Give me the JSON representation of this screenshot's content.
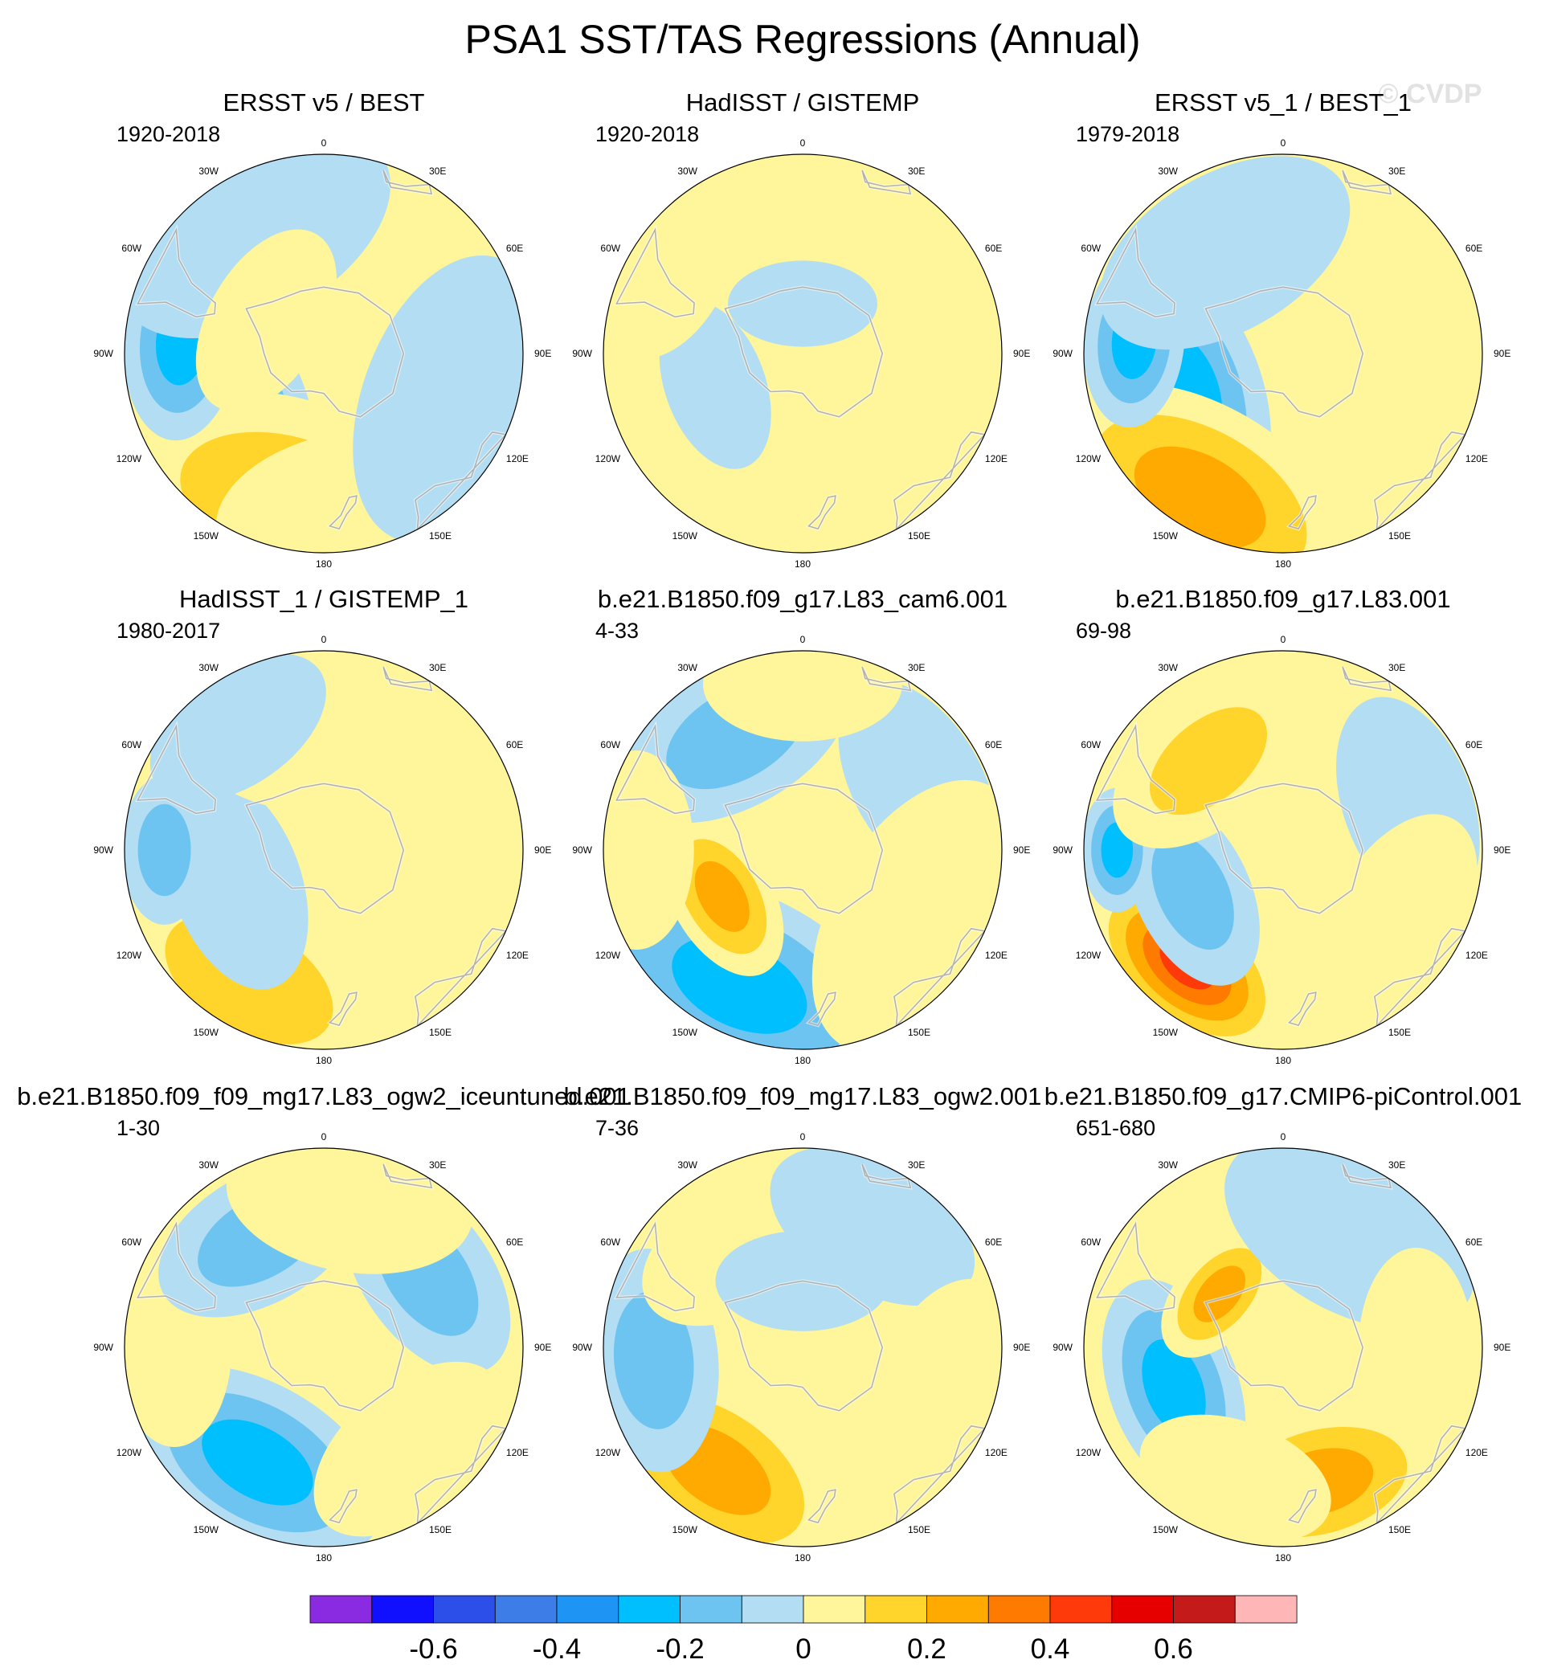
{
  "title": "PSA1 SST/TAS Regressions (Annual)",
  "watermark": "© CVDP",
  "lon_labels": [
    "0",
    "30E",
    "60E",
    "90E",
    "120E",
    "150E",
    "180",
    "150W",
    "120W",
    "90W",
    "60W",
    "30W"
  ],
  "colorbar": {
    "colors": [
      "#8a2be2",
      "#1010ff",
      "#2b4fe8",
      "#3c7de8",
      "#1e95f5",
      "#00bfff",
      "#6ec4f0",
      "#b3ddf2",
      "#fff59a",
      "#ffd42b",
      "#ffaa00",
      "#ff7a00",
      "#ff3a0a",
      "#e60000",
      "#c51a1a",
      "#ffb6b6"
    ],
    "tick_labels": [
      "-0.6",
      "-0.4",
      "-0.2",
      "0",
      "0.2",
      "0.4",
      "0.6"
    ]
  },
  "chart_data": {
    "type": "heatmap",
    "projection": "south-polar-stereographic",
    "variable": "SST/TAS regression onto PSA1 (annual)",
    "scale_range": [
      -0.8,
      0.8
    ],
    "contour_interval": 0.1,
    "panels": [
      {
        "title": "ERSST v5 / BEST",
        "period": "1920-2018",
        "features": [
          {
            "lon": -115,
            "lat": -57,
            "value": -0.25,
            "spread": 55
          },
          {
            "lon": -165,
            "lat": -45,
            "value": 0.2,
            "spread": 70
          },
          {
            "lon": 170,
            "lat": -42,
            "value": 0.15,
            "spread": 55
          },
          {
            "lon": -85,
            "lat": -47,
            "value": -0.3,
            "spread": 40
          },
          {
            "lon": 40,
            "lat": -55,
            "value": 0.1,
            "spread": 55
          },
          {
            "lon": -30,
            "lat": -48,
            "value": -0.05,
            "spread": 60
          },
          {
            "lon": 110,
            "lat": -50,
            "value": -0.05,
            "spread": 60
          },
          {
            "lon": -60,
            "lat": -70,
            "value": 0.05,
            "spread": 40
          }
        ]
      },
      {
        "title": "HadISST / GISTEMP",
        "period": "1920-2018",
        "features": [
          {
            "lon": 0,
            "lat": -50,
            "value": 0.1,
            "spread": 95
          },
          {
            "lon": 150,
            "lat": -48,
            "value": 0.15,
            "spread": 60
          },
          {
            "lon": -150,
            "lat": -45,
            "value": 0.15,
            "spread": 60
          },
          {
            "lon": 60,
            "lat": -45,
            "value": 0.15,
            "spread": 50
          },
          {
            "lon": -110,
            "lat": -62,
            "value": -0.1,
            "spread": 35
          },
          {
            "lon": 0,
            "lat": -75,
            "value": -0.05,
            "spread": 30
          },
          {
            "lon": -60,
            "lat": -45,
            "value": 0.15,
            "spread": 35
          }
        ]
      },
      {
        "title": "ERSST v5_1 / BEST_1",
        "period": "1979-2018",
        "features": [
          {
            "lon": -110,
            "lat": -58,
            "value": -0.3,
            "spread": 55
          },
          {
            "lon": -150,
            "lat": -40,
            "value": 0.25,
            "spread": 65
          },
          {
            "lon": -85,
            "lat": -45,
            "value": -0.35,
            "spread": 35
          },
          {
            "lon": 120,
            "lat": -40,
            "value": 0.1,
            "spread": 60
          },
          {
            "lon": 30,
            "lat": -50,
            "value": 0.08,
            "spread": 55
          },
          {
            "lon": -30,
            "lat": -55,
            "value": -0.05,
            "spread": 55
          }
        ]
      },
      {
        "title": "HadISST_1 / GISTEMP_1",
        "period": "1980-2017",
        "features": [
          {
            "lon": -150,
            "lat": -45,
            "value": 0.2,
            "spread": 60
          },
          {
            "lon": -110,
            "lat": -62,
            "value": -0.1,
            "spread": 45
          },
          {
            "lon": -90,
            "lat": -42,
            "value": -0.2,
            "spread": 30
          },
          {
            "lon": 90,
            "lat": -50,
            "value": 0.1,
            "spread": 60
          },
          {
            "lon": 0,
            "lat": -55,
            "value": 0.05,
            "spread": 55
          },
          {
            "lon": -35,
            "lat": -45,
            "value": -0.05,
            "spread": 40
          }
        ]
      },
      {
        "title": "b.e21.B1850.f09_g17.L83_cam6.001",
        "period": "4-33",
        "features": [
          {
            "lon": -155,
            "lat": -45,
            "value": -0.25,
            "spread": 65
          },
          {
            "lon": -120,
            "lat": -62,
            "value": 0.25,
            "spread": 35
          },
          {
            "lon": -30,
            "lat": -50,
            "value": -0.2,
            "spread": 50
          },
          {
            "lon": 60,
            "lat": -50,
            "value": -0.1,
            "spread": 45
          },
          {
            "lon": -90,
            "lat": -40,
            "value": 0.1,
            "spread": 40
          },
          {
            "lon": 120,
            "lat": -50,
            "value": 0.05,
            "spread": 60
          },
          {
            "lon": 0,
            "lat": -40,
            "value": 0.1,
            "spread": 40
          }
        ]
      },
      {
        "title": "b.e21.B1850.f09_g17.L83.001",
        "period": "69-98",
        "features": [
          {
            "lon": -140,
            "lat": -45,
            "value": 0.45,
            "spread": 45
          },
          {
            "lon": -115,
            "lat": -60,
            "value": -0.2,
            "spread": 40
          },
          {
            "lon": -90,
            "lat": -40,
            "value": -0.3,
            "spread": 25
          },
          {
            "lon": -40,
            "lat": -55,
            "value": 0.2,
            "spread": 45
          },
          {
            "lon": 70,
            "lat": -50,
            "value": -0.05,
            "spread": 45
          },
          {
            "lon": 120,
            "lat": -50,
            "value": 0.05,
            "spread": 45
          }
        ]
      },
      {
        "title": "b.e21.B1850.f09_f09_mg17.L83_ogw2_iceuntuned.001",
        "period": "1-30",
        "features": [
          {
            "lon": -150,
            "lat": -50,
            "value": -0.25,
            "spread": 55
          },
          {
            "lon": -90,
            "lat": -45,
            "value": 0.15,
            "spread": 40
          },
          {
            "lon": -30,
            "lat": -52,
            "value": -0.2,
            "spread": 45
          },
          {
            "lon": 55,
            "lat": -52,
            "value": -0.2,
            "spread": 45
          },
          {
            "lon": 10,
            "lat": -45,
            "value": 0.1,
            "spread": 50
          },
          {
            "lon": 140,
            "lat": -50,
            "value": 0.05,
            "spread": 45
          }
        ]
      },
      {
        "title": "b.e21.B1850.f09_f09_mg17.L83_ogw2.001",
        "period": "7-36",
        "features": [
          {
            "lon": -145,
            "lat": -45,
            "value": 0.3,
            "spread": 55
          },
          {
            "lon": -95,
            "lat": -45,
            "value": -0.2,
            "spread": 45
          },
          {
            "lon": -30,
            "lat": -55,
            "value": 0.15,
            "spread": 45
          },
          {
            "lon": 30,
            "lat": -48,
            "value": -0.1,
            "spread": 45
          },
          {
            "lon": 110,
            "lat": -45,
            "value": 0.1,
            "spread": 50
          },
          {
            "lon": 0,
            "lat": -70,
            "value": -0.05,
            "spread": 35
          }
        ]
      },
      {
        "title": "b.e21.B1850.f09_g17.CMIP6-piControl.001",
        "period": "651-680",
        "features": [
          {
            "lon": -110,
            "lat": -55,
            "value": -0.3,
            "spread": 45
          },
          {
            "lon": 165,
            "lat": -48,
            "value": 0.25,
            "spread": 50
          },
          {
            "lon": -50,
            "lat": -65,
            "value": 0.25,
            "spread": 30
          },
          {
            "lon": -160,
            "lat": -48,
            "value": 0.1,
            "spread": 40
          },
          {
            "lon": 30,
            "lat": -50,
            "value": -0.05,
            "spread": 55
          },
          {
            "lon": 90,
            "lat": -50,
            "value": 0.05,
            "spread": 40
          }
        ]
      }
    ]
  }
}
